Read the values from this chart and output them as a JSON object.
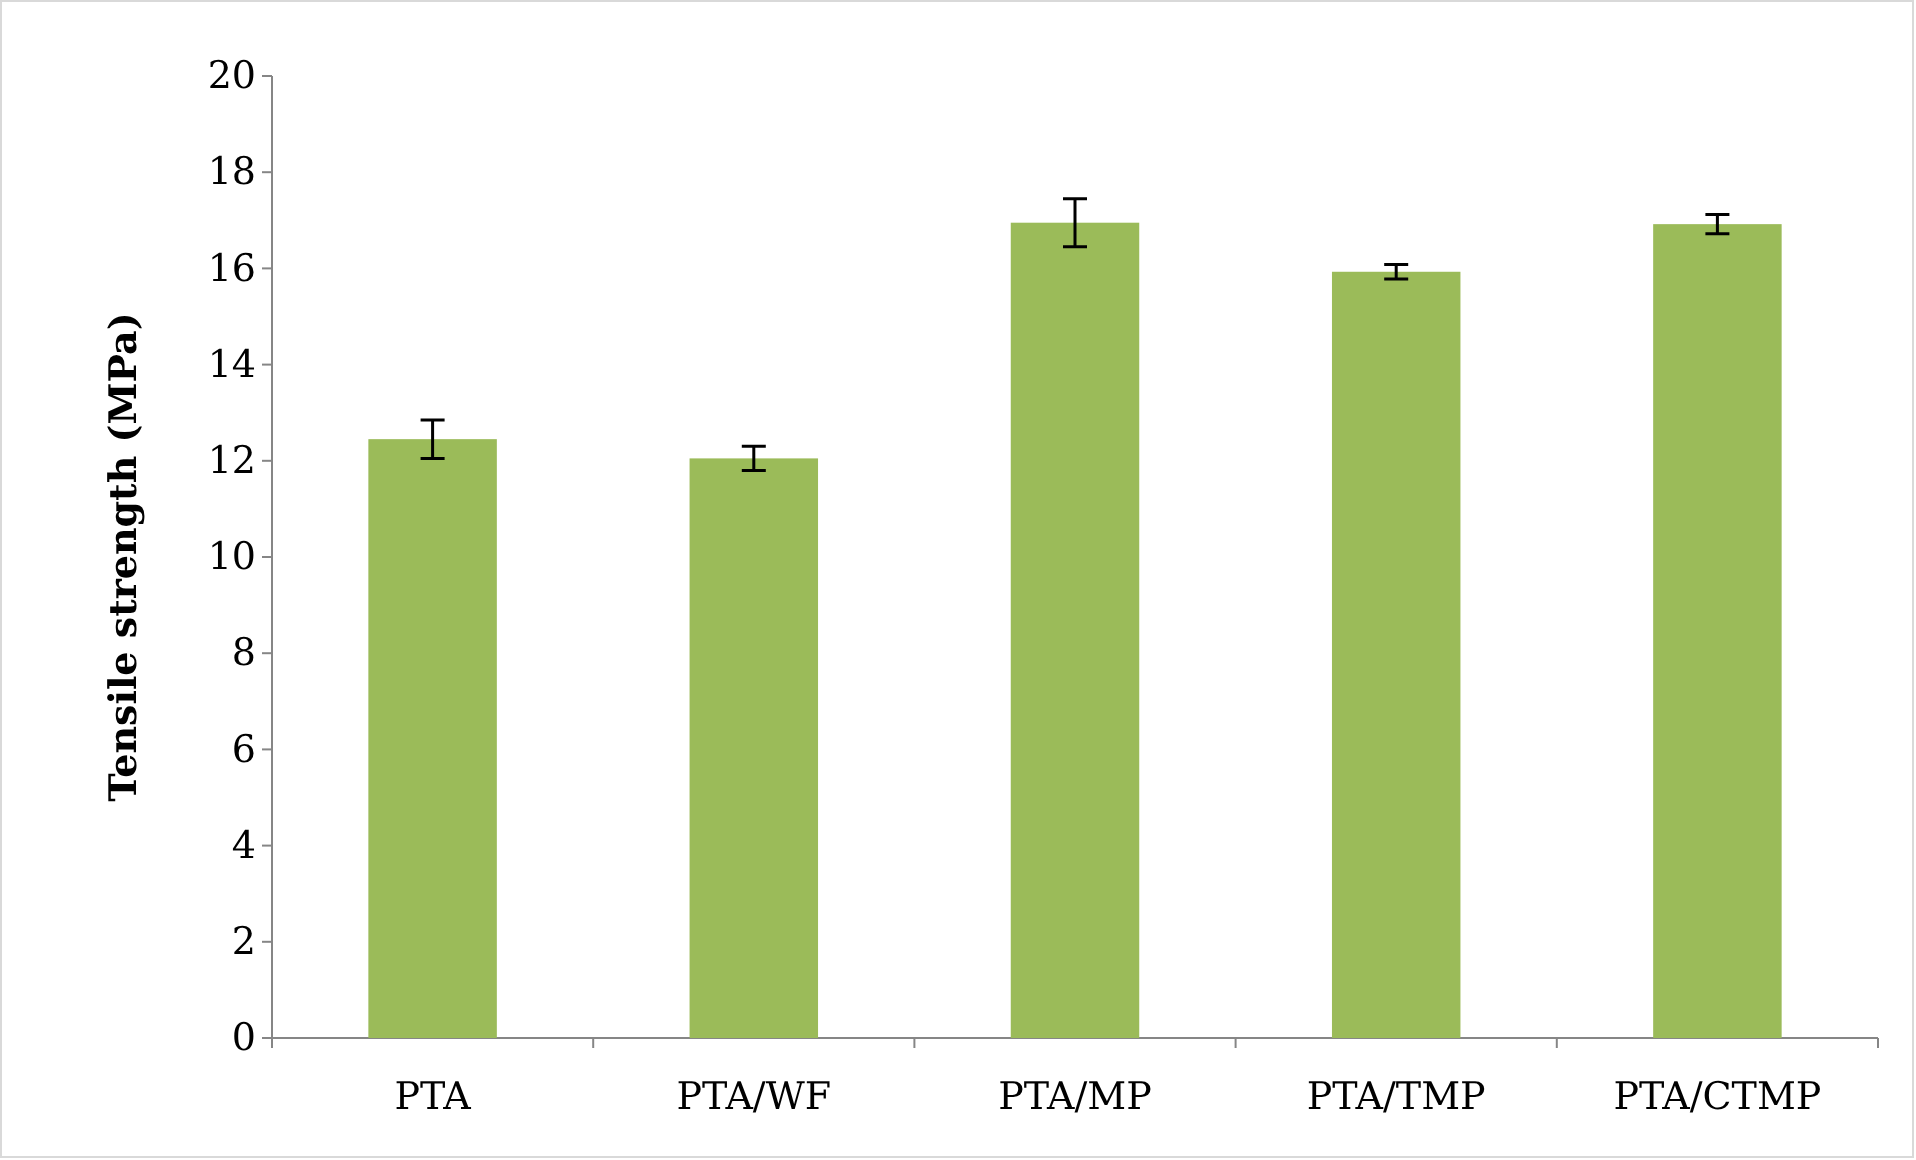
{
  "chart_data": {
    "type": "bar",
    "ylabel": "Tensile strength (MPa)",
    "categories": [
      "PTA",
      "PTA/WF",
      "PTA/MP",
      "PTA/TMP",
      "PTA/CTMP"
    ],
    "values": [
      12.45,
      12.05,
      16.95,
      15.93,
      16.92
    ],
    "errors": [
      0.4,
      0.25,
      0.5,
      0.15,
      0.2
    ],
    "color": "#9bbb59",
    "ylim": [
      0,
      20
    ],
    "yticks": [
      0,
      2,
      4,
      6,
      8,
      10,
      12,
      14,
      16,
      18,
      20
    ],
    "grid": false
  }
}
